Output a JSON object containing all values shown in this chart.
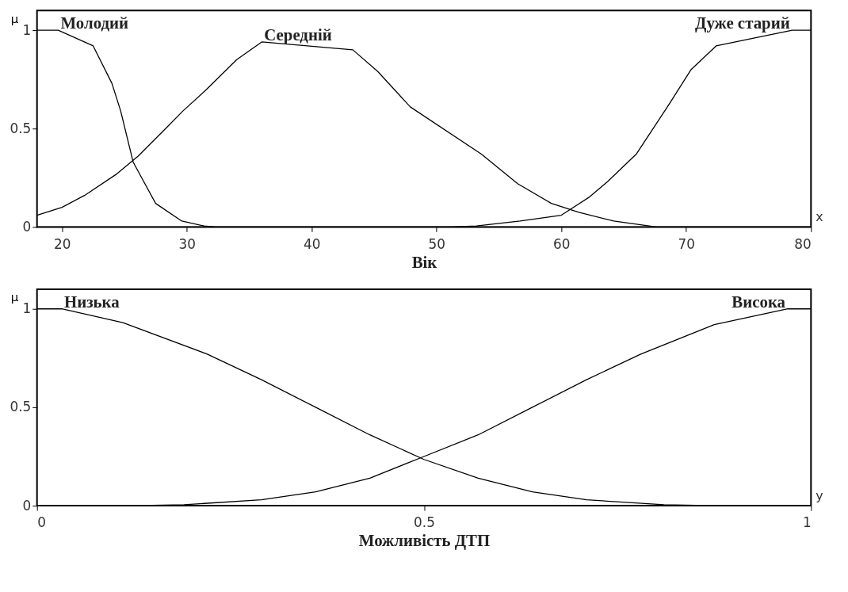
{
  "chart_data": [
    {
      "type": "line",
      "xlabel": "Вік",
      "ylabel": "μ",
      "annotations": [
        "x"
      ],
      "xlim": [
        18,
        80
      ],
      "ylim": [
        0,
        1.1
      ],
      "xticks": [
        20,
        30,
        40,
        50,
        60,
        70,
        80
      ],
      "yticks": [
        0,
        0.5,
        1
      ],
      "series": [
        {
          "name": "Молодий",
          "color": "#000000",
          "x": [
            18,
            19.7,
            22.5,
            24.0,
            24.7,
            25.7,
            27.5,
            29.6,
            31.4,
            32.3,
            80
          ],
          "values": [
            1,
            1,
            0.92,
            0.73,
            0.59,
            0.33,
            0.12,
            0.03,
            0.005,
            0,
            0
          ]
        },
        {
          "name": "Середній",
          "color": "#000000",
          "x": [
            18,
            20,
            21.8,
            24.4,
            26.1,
            28.3,
            29.7,
            31.6,
            34.0,
            36.0,
            43.3,
            45.3,
            47.9,
            53.6,
            56.5,
            59.2,
            61.4,
            64.2,
            67.6,
            80
          ],
          "values": [
            0.06,
            0.1,
            0.16,
            0.27,
            0.36,
            0.5,
            0.59,
            0.7,
            0.85,
            0.94,
            0.9,
            0.79,
            0.61,
            0.37,
            0.22,
            0.12,
            0.075,
            0.03,
            0,
            0
          ]
        },
        {
          "name": "Дуже старий",
          "color": "#000000",
          "x": [
            18,
            51.2,
            53.2,
            56.7,
            60,
            62.2,
            63.7,
            66,
            68.6,
            70.4,
            72.4,
            78.5,
            80
          ],
          "values": [
            0,
            0,
            0.005,
            0.03,
            0.06,
            0.15,
            0.23,
            0.37,
            0.62,
            0.8,
            0.92,
            1,
            1
          ]
        }
      ]
    },
    {
      "type": "line",
      "xlabel": "Можливість ДТП",
      "ylabel": "μ",
      "annotations": [
        "y"
      ],
      "xlim": [
        0,
        1
      ],
      "ylim": [
        0,
        1.1
      ],
      "xticks": [
        0,
        0.5,
        1
      ],
      "yticks": [
        0,
        0.5,
        1
      ],
      "series": [
        {
          "name": "Низька",
          "color": "#000000",
          "x": [
            0,
            0.032,
            0.111,
            0.22,
            0.29,
            0.36,
            0.43,
            0.5,
            0.57,
            0.64,
            0.71,
            0.81,
            0.88,
            1
          ],
          "values": [
            1,
            1,
            0.93,
            0.77,
            0.64,
            0.5,
            0.36,
            0.235,
            0.14,
            0.07,
            0.03,
            0.005,
            0,
            0
          ]
        },
        {
          "name": "Висока",
          "color": "#000000",
          "x": [
            0,
            0.12,
            0.19,
            0.29,
            0.36,
            0.43,
            0.5,
            0.57,
            0.64,
            0.71,
            0.78,
            0.875,
            0.97,
            1
          ],
          "values": [
            0,
            0,
            0.005,
            0.03,
            0.07,
            0.14,
            0.25,
            0.36,
            0.5,
            0.64,
            0.77,
            0.92,
            1,
            1
          ]
        }
      ]
    }
  ]
}
